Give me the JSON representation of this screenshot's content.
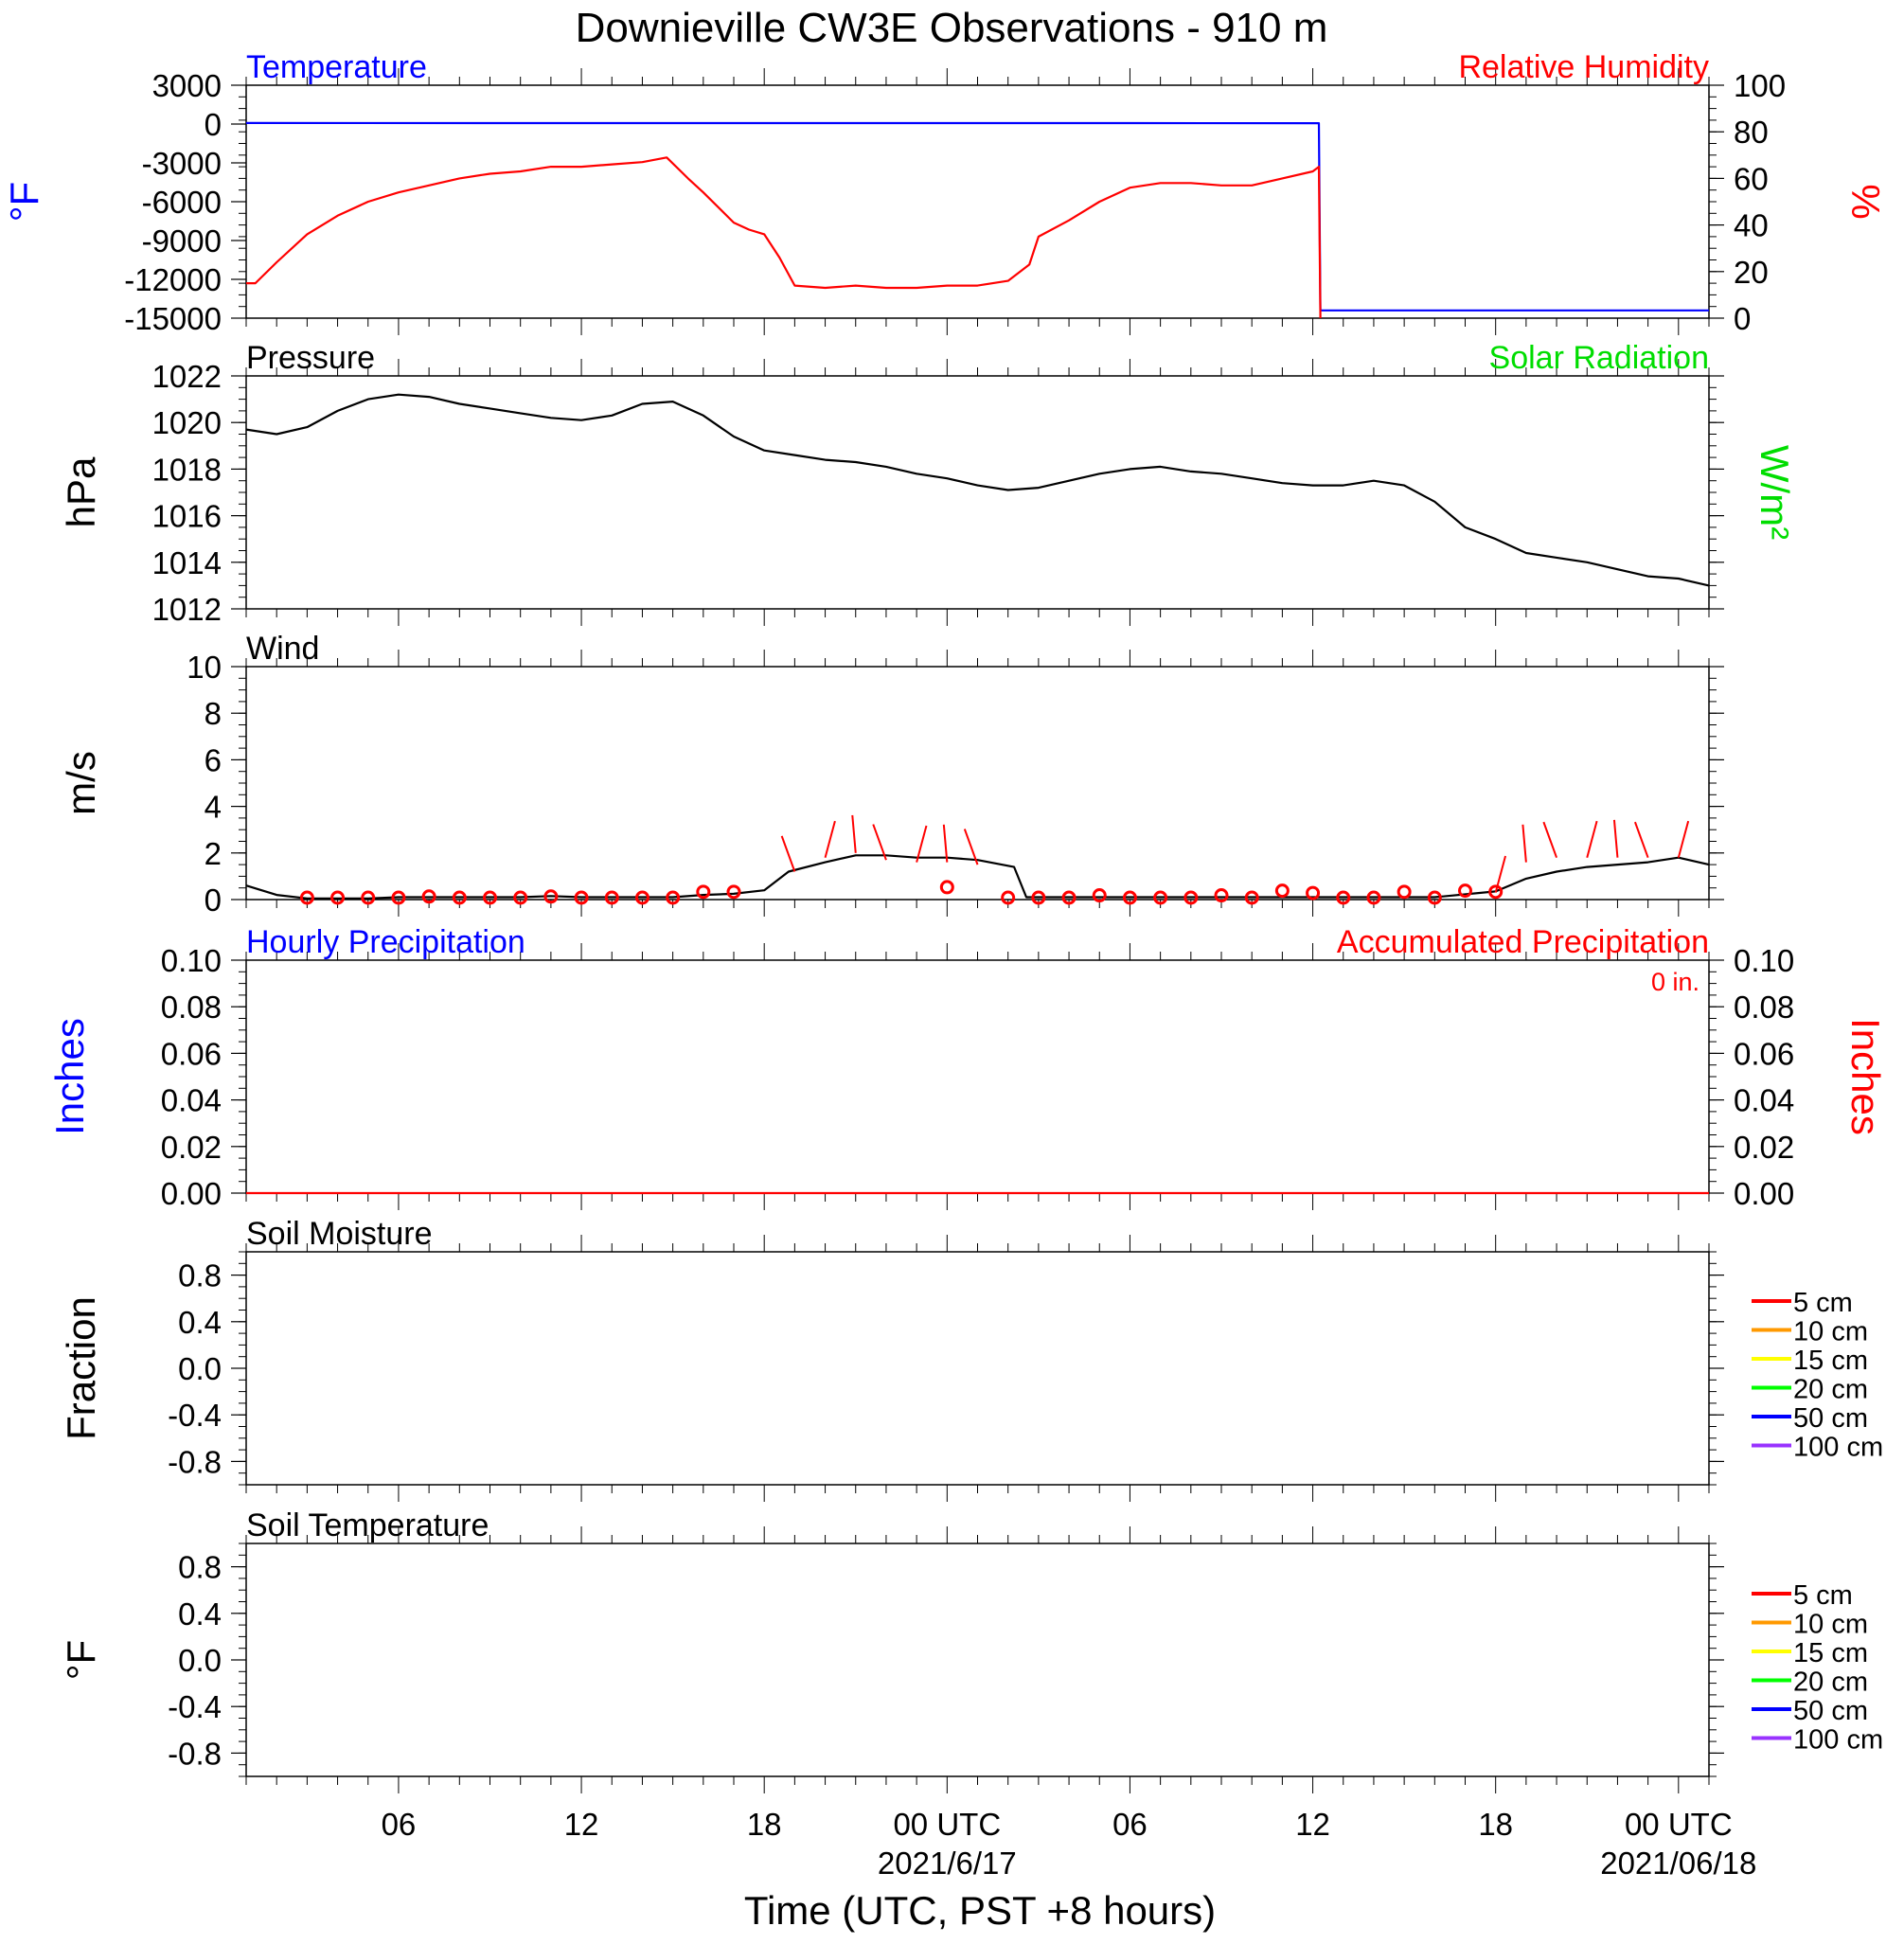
{
  "title": "Downieville CW3E Observations - 910 m",
  "xlabel": "Time (UTC, PST +8 hours)",
  "x_ticks": [
    {
      "hour": 6,
      "label": "06"
    },
    {
      "hour": 12,
      "label": "12"
    },
    {
      "hour": 18,
      "label": "18"
    },
    {
      "hour": 24,
      "label": "00 UTC",
      "date": "2021/6/17"
    },
    {
      "hour": 30,
      "label": "06"
    },
    {
      "hour": 36,
      "label": "12"
    },
    {
      "hour": 42,
      "label": "18"
    },
    {
      "hour": 48,
      "label": "00 UTC",
      "date": "2021/06/18"
    }
  ],
  "x_range_hours": [
    1,
    49
  ],
  "colors": {
    "temperature": "#0000ff",
    "humidity": "#ff0000",
    "pressure": "#000000",
    "solar": "#00dd00",
    "wind": "#000000",
    "wind_barb": "#ff0000",
    "precip_hourly": "#0000ff",
    "precip_accum": "#ff0000"
  },
  "soil_legend": [
    {
      "label": "5 cm",
      "color": "#ff0000"
    },
    {
      "label": "10 cm",
      "color": "#ff9900"
    },
    {
      "label": "15 cm",
      "color": "#ffff00"
    },
    {
      "label": "20 cm",
      "color": "#00ff00"
    },
    {
      "label": "50 cm",
      "color": "#0000ff"
    },
    {
      "label": "100 cm",
      "color": "#9933ff"
    }
  ],
  "chart_data": [
    {
      "type": "line",
      "panel": "temperature_humidity",
      "left_title": "Temperature",
      "right_title": "Relative Humidity",
      "left_ylabel": "°F",
      "right_ylabel": "%",
      "left_ticks": [
        "3000",
        "0",
        "-3000",
        "-6000",
        "-9000",
        "-12000",
        "-15000"
      ],
      "right_ticks": [
        "100",
        "80",
        "60",
        "40",
        "20",
        "0"
      ],
      "ylim_left": [
        -15000,
        3000
      ],
      "ylim_right": [
        0,
        100
      ],
      "series": [
        {
          "axis": "left",
          "x": [
            1,
            10,
            20,
            30,
            36.2,
            36.25,
            49
          ],
          "y": [
            80,
            70,
            75,
            70,
            65,
            -14400,
            -14400
          ]
        },
        {
          "axis": "right",
          "x": [
            1,
            1.3,
            2,
            3,
            4,
            5,
            6,
            7,
            8,
            9,
            10,
            11,
            12,
            13,
            14,
            14.8,
            15.5,
            16,
            17,
            17.5,
            18,
            18.5,
            19,
            20,
            21,
            22,
            23,
            24,
            25,
            26,
            26.7,
            27,
            28,
            29,
            30,
            31,
            32,
            33,
            34,
            35,
            36,
            36.2,
            36.25
          ],
          "y": [
            15,
            15,
            24,
            36,
            44,
            50,
            54,
            57,
            60,
            62,
            63,
            65,
            65,
            66,
            67,
            69,
            60,
            54,
            41,
            38,
            36,
            26,
            14,
            13,
            14,
            13,
            13,
            14,
            14,
            16,
            23,
            35,
            42,
            50,
            56,
            58,
            58,
            57,
            57,
            60,
            63,
            65,
            0
          ]
        }
      ]
    },
    {
      "type": "line",
      "panel": "pressure",
      "left_title": "Pressure",
      "right_title": "Solar Radiation",
      "left_ylabel": "hPa",
      "right_ylabel": "W/m²",
      "left_ticks": [
        "1022",
        "1020",
        "1018",
        "1016",
        "1014",
        "1012"
      ],
      "ylim": [
        1012,
        1022
      ],
      "series": [
        {
          "x": [
            1,
            2,
            3,
            4,
            5,
            6,
            7,
            8,
            9,
            10,
            11,
            12,
            13,
            14,
            15,
            16,
            17,
            18,
            19,
            20,
            21,
            22,
            23,
            24,
            25,
            26,
            27,
            28,
            29,
            30,
            31,
            32,
            33,
            34,
            35,
            36,
            37,
            38,
            39,
            40,
            41,
            42,
            43,
            44,
            45,
            46,
            47,
            48,
            49
          ],
          "y": [
            1019.7,
            1019.5,
            1019.8,
            1020.5,
            1021.0,
            1021.2,
            1021.1,
            1020.8,
            1020.6,
            1020.4,
            1020.2,
            1020.1,
            1020.3,
            1020.8,
            1020.9,
            1020.3,
            1019.4,
            1018.8,
            1018.6,
            1018.4,
            1018.3,
            1018.1,
            1017.8,
            1017.6,
            1017.3,
            1017.1,
            1017.2,
            1017.5,
            1017.8,
            1018.0,
            1018.1,
            1017.9,
            1017.8,
            1017.6,
            1017.4,
            1017.3,
            1017.3,
            1017.5,
            1017.3,
            1016.6,
            1015.5,
            1015.0,
            1014.4,
            1014.2,
            1014.0,
            1013.7,
            1013.4,
            1013.3,
            1013.0
          ]
        }
      ]
    },
    {
      "type": "line",
      "panel": "wind",
      "left_title": "Wind",
      "left_ylabel": "m/s",
      "left_ticks": [
        "10",
        "8",
        "6",
        "4",
        "2",
        "0"
      ],
      "ylim": [
        0,
        10
      ],
      "series": [
        {
          "name": "wind speed",
          "x": [
            1,
            2,
            3,
            4,
            5,
            6,
            7,
            8,
            9,
            10,
            11,
            12,
            13,
            14,
            15,
            16,
            17,
            18,
            18.8,
            20,
            21,
            22,
            23,
            24,
            25,
            26.2,
            26.6,
            28,
            30,
            32,
            34,
            36,
            38,
            40,
            42,
            43,
            44,
            45,
            46,
            47,
            48,
            49
          ],
          "y": [
            0.6,
            0.2,
            0.05,
            0.05,
            0.05,
            0.1,
            0.1,
            0.1,
            0.1,
            0.1,
            0.15,
            0.1,
            0.1,
            0.1,
            0.1,
            0.2,
            0.25,
            0.4,
            1.2,
            1.6,
            1.9,
            1.9,
            1.8,
            1.8,
            1.7,
            1.4,
            0.1,
            0.1,
            0.1,
            0.1,
            0.1,
            0.1,
            0.1,
            0.1,
            0.35,
            0.9,
            1.2,
            1.4,
            1.5,
            1.6,
            1.8,
            1.5
          ]
        }
      ],
      "calm_markers": {
        "x": [
          3,
          4,
          5,
          6,
          7,
          8,
          9,
          10,
          11,
          12,
          13,
          14,
          15,
          16,
          17,
          24,
          26,
          27,
          28,
          29,
          30,
          31,
          32,
          33,
          34,
          35,
          36,
          37,
          38,
          39,
          40,
          41,
          42
        ],
        "y": [
          0,
          0,
          0,
          0,
          0.05,
          0,
          0,
          0,
          0.05,
          0,
          0,
          0,
          0,
          0.25,
          0.25,
          0.45,
          0,
          0,
          0,
          0.1,
          0,
          0,
          0,
          0.1,
          0,
          0.3,
          0.2,
          0,
          0,
          0.25,
          0,
          0.3,
          0.25
        ]
      },
      "barbs": {
        "x": [
          19,
          20,
          21,
          22,
          23,
          24,
          25,
          42,
          43,
          44,
          45,
          46,
          47,
          48
        ],
        "y": [
          1.2,
          1.8,
          2.0,
          1.7,
          1.6,
          1.6,
          1.5,
          0.3,
          1.6,
          1.8,
          1.8,
          1.8,
          1.8,
          1.8
        ]
      }
    },
    {
      "type": "line",
      "panel": "precipitation",
      "left_title": "Hourly Precipitation",
      "right_title": "Accumulated Precipitation",
      "accum_note": "0 in.",
      "left_ylabel": "Inches",
      "right_ylabel": "Inches",
      "left_ticks": [
        "0.10",
        "0.08",
        "0.06",
        "0.04",
        "0.02",
        "0.00"
      ],
      "right_ticks": [
        "0.10",
        "0.08",
        "0.06",
        "0.04",
        "0.02",
        "0.00"
      ],
      "ylim": [
        0,
        0.1
      ],
      "series": [
        {
          "axis": "right",
          "x": [
            1,
            49
          ],
          "y": [
            0,
            0
          ]
        }
      ]
    },
    {
      "type": "line",
      "panel": "soil_moisture",
      "left_title": "Soil Moisture",
      "left_ylabel": "Fraction",
      "left_ticks": [
        "0.8",
        "0.4",
        "0.0",
        "-0.4",
        "-0.8"
      ],
      "ylim": [
        -1,
        1
      ],
      "series": []
    },
    {
      "type": "line",
      "panel": "soil_temperature",
      "left_title": "Soil Temperature",
      "left_ylabel": "°F",
      "left_ticks": [
        "0.8",
        "0.4",
        "0.0",
        "-0.4",
        "-0.8"
      ],
      "ylim": [
        -1,
        1
      ],
      "series": []
    }
  ]
}
